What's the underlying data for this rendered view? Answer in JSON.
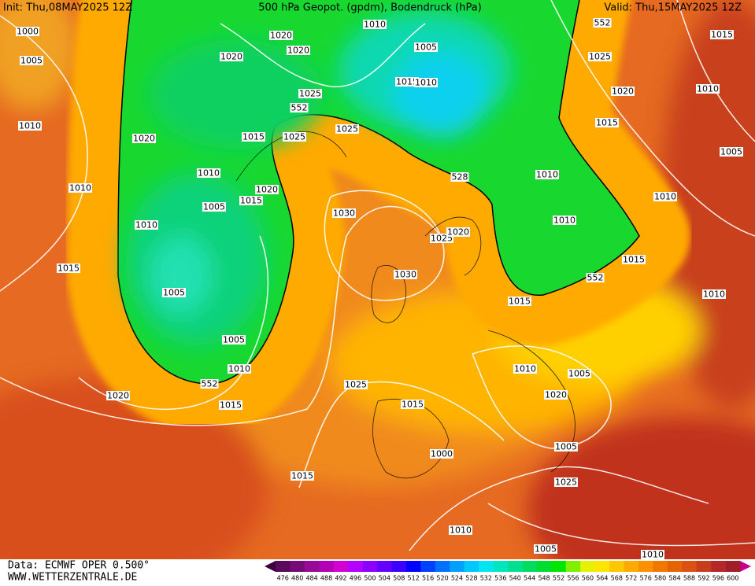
{
  "header": {
    "init": "Init: Thu,08MAY2025 12Z",
    "title": "500 hPa Geopot. (gpdm), Bodendruck (hPa)",
    "valid": "Valid: Thu,15MAY2025 12Z"
  },
  "footer": {
    "source": "Data: ECMWF OPER 0.500°",
    "website": "WWW.WETTERZENTRALE.DE"
  },
  "isobar_labels": [
    "1000",
    "1005",
    "1010",
    "1010",
    "1010",
    "1015",
    "1020",
    "1020",
    "1020",
    "1020",
    "1010",
    "1005",
    "1025",
    "1015",
    "1010",
    "552",
    "1025",
    "1025",
    "1015",
    "1010",
    "1020",
    "1015",
    "1005",
    "1030",
    "1005",
    "1005",
    "1010",
    "552",
    "1015",
    "1020",
    "1025",
    "1030",
    "1025",
    "1020",
    "528",
    "1010",
    "1010",
    "1015",
    "552",
    "1015",
    "552",
    "1025",
    "1020",
    "1015",
    "1015",
    "1010",
    "1005",
    "1010",
    "1010",
    "1010",
    "1005",
    "1020",
    "1015",
    "1000",
    "1005",
    "1025",
    "1015",
    "1010",
    "1005",
    "1010"
  ],
  "colorbar": {
    "labels": [
      476,
      480,
      484,
      488,
      492,
      496,
      500,
      504,
      508,
      512,
      516,
      520,
      524,
      528,
      532,
      536,
      540,
      544,
      548,
      552,
      556,
      560,
      564,
      568,
      572,
      576,
      580,
      584,
      588,
      592,
      596,
      600
    ],
    "colors": [
      "#5a0a5a",
      "#780a78",
      "#960a96",
      "#b400b4",
      "#d200d2",
      "#b400ff",
      "#8c00ff",
      "#6400ff",
      "#3c00ff",
      "#0000ff",
      "#0040ff",
      "#0070ff",
      "#00a0ff",
      "#00c8ff",
      "#00e6f0",
      "#00e6c0",
      "#00e090",
      "#00dc60",
      "#00dc30",
      "#00e600",
      "#80f000",
      "#e6f000",
      "#ffe600",
      "#ffc800",
      "#ffaa00",
      "#ff9000",
      "#f07800",
      "#e66400",
      "#dc5014",
      "#c83c1e",
      "#b42828",
      "#a01e28"
    ]
  }
}
